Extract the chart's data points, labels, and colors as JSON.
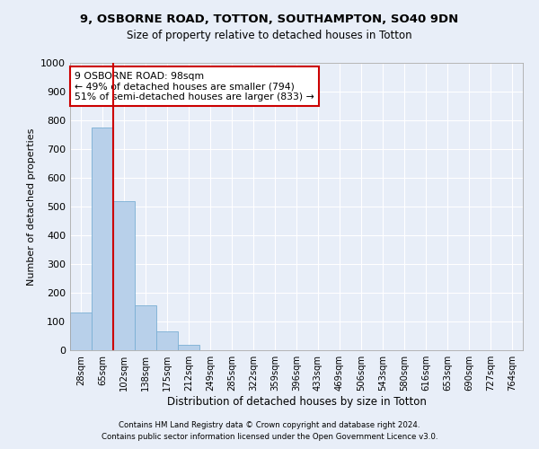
{
  "title_line1": "9, OSBORNE ROAD, TOTTON, SOUTHAMPTON, SO40 9DN",
  "title_line2": "Size of property relative to detached houses in Totton",
  "xlabel": "Distribution of detached houses by size in Totton",
  "ylabel": "Number of detached properties",
  "footer_line1": "Contains HM Land Registry data © Crown copyright and database right 2024.",
  "footer_line2": "Contains public sector information licensed under the Open Government Licence v3.0.",
  "bin_labels": [
    "28sqm",
    "65sqm",
    "102sqm",
    "138sqm",
    "175sqm",
    "212sqm",
    "249sqm",
    "285sqm",
    "322sqm",
    "359sqm",
    "396sqm",
    "433sqm",
    "469sqm",
    "506sqm",
    "543sqm",
    "580sqm",
    "616sqm",
    "653sqm",
    "690sqm",
    "727sqm",
    "764sqm"
  ],
  "bar_values": [
    130,
    775,
    520,
    155,
    65,
    20,
    0,
    0,
    0,
    0,
    0,
    0,
    0,
    0,
    0,
    0,
    0,
    0,
    0,
    0,
    0
  ],
  "bar_color": "#b8d0ea",
  "bar_edgecolor": "#7aafd4",
  "annotation_line1": "9 OSBORNE ROAD: 98sqm",
  "annotation_line2": "← 49% of detached houses are smaller (794)",
  "annotation_line3": "51% of semi-detached houses are larger (833) →",
  "marker_color": "#cc0000",
  "ylim": [
    0,
    1000
  ],
  "yticks": [
    0,
    100,
    200,
    300,
    400,
    500,
    600,
    700,
    800,
    900,
    1000
  ],
  "background_color": "#e8eef8",
  "grid_color": "#ffffff",
  "annotation_box_edgecolor": "#cc0000",
  "annotation_box_facecolor": "#ffffff"
}
